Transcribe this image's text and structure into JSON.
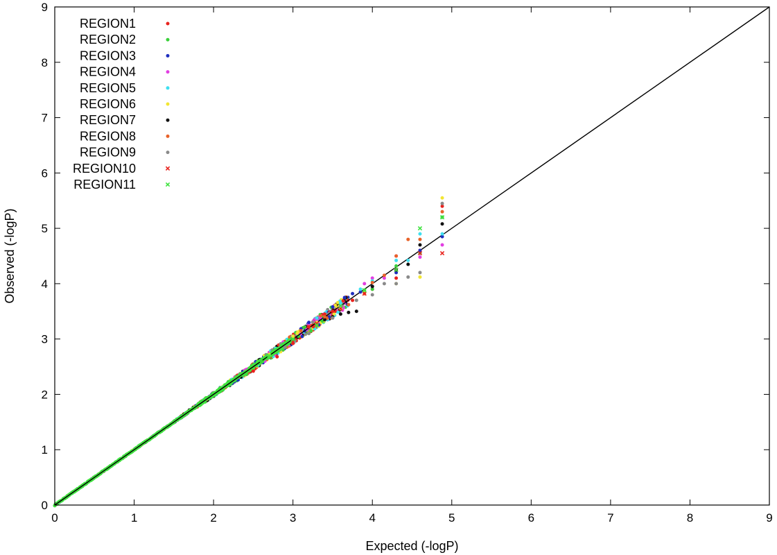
{
  "chart_data": {
    "type": "scatter",
    "title": "",
    "xlabel": "Expected (-logP)",
    "ylabel": "Observed (-logP)",
    "xlim": [
      0,
      9
    ],
    "ylim": [
      0,
      9
    ],
    "xticks": [
      "0",
      "1",
      "2",
      "3",
      "4",
      "5",
      "6",
      "7",
      "8",
      "9"
    ],
    "yticks": [
      "0",
      "1",
      "2",
      "3",
      "4",
      "5",
      "6",
      "7",
      "8",
      "9"
    ],
    "grid": false,
    "legend_position": "top-left",
    "reference_line": {
      "from": [
        0,
        0
      ],
      "to": [
        9,
        9
      ],
      "color": "#000000"
    },
    "series": [
      {
        "name": "REGION1",
        "color": "#e8231e",
        "marker": "dot",
        "points": [
          [
            2.5,
            2.42
          ],
          [
            2.8,
            2.68
          ],
          [
            3.0,
            2.92
          ],
          [
            3.2,
            3.22
          ],
          [
            3.4,
            3.45
          ],
          [
            3.5,
            3.5
          ],
          [
            3.6,
            3.58
          ],
          [
            3.75,
            3.7
          ],
          [
            3.9,
            3.85
          ],
          [
            4.0,
            3.9
          ],
          [
            4.3,
            4.1
          ],
          [
            4.6,
            4.6
          ],
          [
            4.88,
            5.4
          ]
        ]
      },
      {
        "name": "REGION2",
        "color": "#3ad03a",
        "marker": "dot",
        "points": [
          [
            2.6,
            2.6
          ],
          [
            3.0,
            3.0
          ],
          [
            3.3,
            3.25
          ],
          [
            3.6,
            3.55
          ],
          [
            3.9,
            3.88
          ],
          [
            4.0,
            3.9
          ],
          [
            4.3,
            4.32
          ],
          [
            4.6,
            4.55
          ],
          [
            4.88,
            5.2
          ]
        ]
      },
      {
        "name": "REGION3",
        "color": "#1f2fbf",
        "marker": "dot",
        "points": [
          [
            3.2,
            3.3
          ],
          [
            3.5,
            3.58
          ],
          [
            3.65,
            3.75
          ],
          [
            3.75,
            3.82
          ],
          [
            3.85,
            3.85
          ],
          [
            4.0,
            3.95
          ],
          [
            4.3,
            4.2
          ],
          [
            4.6,
            4.6
          ],
          [
            4.88,
            4.85
          ]
        ]
      },
      {
        "name": "REGION4",
        "color": "#e23fe2",
        "marker": "dot",
        "points": [
          [
            3.3,
            3.35
          ],
          [
            3.6,
            3.6
          ],
          [
            3.9,
            4.0
          ],
          [
            4.0,
            4.1
          ],
          [
            4.15,
            4.1
          ],
          [
            4.3,
            4.5
          ],
          [
            4.6,
            4.48
          ],
          [
            4.88,
            4.7
          ]
        ]
      },
      {
        "name": "REGION5",
        "color": "#3fe0f0",
        "marker": "dot",
        "points": [
          [
            3.0,
            3.05
          ],
          [
            3.3,
            3.38
          ],
          [
            3.6,
            3.65
          ],
          [
            3.85,
            3.9
          ],
          [
            4.0,
            4.05
          ],
          [
            4.3,
            4.42
          ],
          [
            4.45,
            4.42
          ],
          [
            4.6,
            4.9
          ],
          [
            4.88,
            4.9
          ]
        ]
      },
      {
        "name": "REGION6",
        "color": "#f2e632",
        "marker": "dot",
        "points": [
          [
            2.7,
            2.72
          ],
          [
            3.0,
            3.05
          ],
          [
            3.3,
            3.3
          ],
          [
            3.6,
            3.55
          ],
          [
            3.9,
            3.85
          ],
          [
            4.3,
            4.0
          ],
          [
            4.6,
            4.12
          ],
          [
            4.88,
            5.55
          ]
        ]
      },
      {
        "name": "REGION7",
        "color": "#111111",
        "marker": "dot",
        "points": [
          [
            3.4,
            3.35
          ],
          [
            3.5,
            3.4
          ],
          [
            3.6,
            3.45
          ],
          [
            3.7,
            3.48
          ],
          [
            3.8,
            3.5
          ],
          [
            4.0,
            3.95
          ],
          [
            4.3,
            4.25
          ],
          [
            4.45,
            4.35
          ],
          [
            4.6,
            4.7
          ],
          [
            4.88,
            5.08
          ]
        ]
      },
      {
        "name": "REGION8",
        "color": "#e8632a",
        "marker": "dot",
        "points": [
          [
            3.1,
            3.15
          ],
          [
            3.4,
            3.4
          ],
          [
            3.7,
            3.62
          ],
          [
            3.9,
            3.82
          ],
          [
            4.0,
            4.02
          ],
          [
            4.15,
            4.15
          ],
          [
            4.3,
            4.5
          ],
          [
            4.45,
            4.8
          ],
          [
            4.6,
            4.8
          ],
          [
            4.88,
            5.3
          ]
        ]
      },
      {
        "name": "REGION9",
        "color": "#8a8a8a",
        "marker": "dot",
        "points": [
          [
            2.9,
            2.85
          ],
          [
            3.2,
            3.1
          ],
          [
            3.5,
            3.38
          ],
          [
            3.8,
            3.7
          ],
          [
            4.0,
            3.8
          ],
          [
            4.15,
            4.0
          ],
          [
            4.3,
            4.0
          ],
          [
            4.45,
            4.12
          ],
          [
            4.6,
            4.2
          ],
          [
            4.88,
            5.45
          ]
        ]
      },
      {
        "name": "REGION10",
        "color": "#e8231e",
        "marker": "cross",
        "points": [
          [
            3.0,
            2.95
          ],
          [
            3.3,
            3.28
          ],
          [
            3.6,
            3.55
          ],
          [
            3.9,
            3.82
          ],
          [
            4.3,
            4.25
          ],
          [
            4.6,
            4.55
          ],
          [
            4.88,
            4.55
          ]
        ]
      },
      {
        "name": "REGION11",
        "color": "#3fe23f",
        "marker": "cross",
        "points": [
          [
            2.7,
            2.7
          ],
          [
            3.0,
            3.0
          ],
          [
            3.3,
            3.25
          ],
          [
            3.6,
            3.6
          ],
          [
            3.9,
            3.88
          ],
          [
            4.3,
            4.25
          ],
          [
            4.6,
            5.0
          ],
          [
            4.88,
            5.2
          ]
        ]
      }
    ]
  }
}
